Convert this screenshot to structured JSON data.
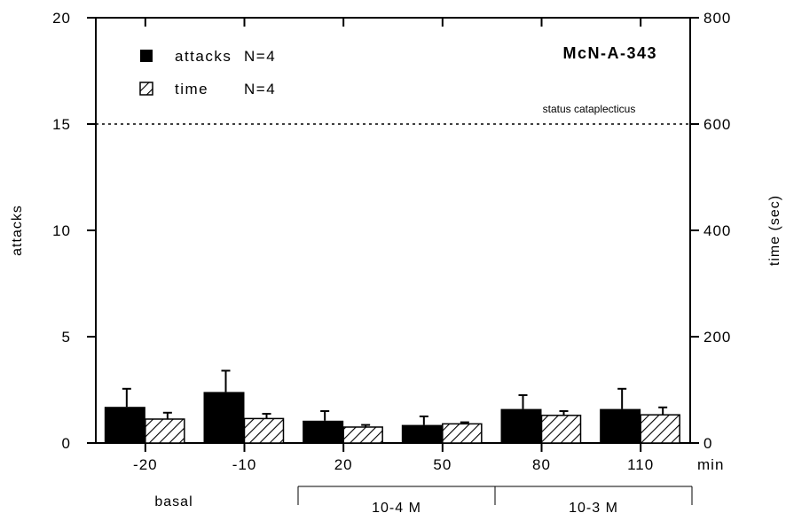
{
  "chart_data": {
    "type": "bar",
    "title": "McN-A-343",
    "categories": [
      "-20",
      "-10",
      "20",
      "50",
      "80",
      "110"
    ],
    "x_unit": "min",
    "series": [
      {
        "name": "attacks N=4",
        "axis": "left",
        "fill": "solid",
        "values": [
          1.7,
          2.4,
          1.05,
          0.85,
          1.6,
          1.6
        ],
        "errors": [
          0.85,
          1.0,
          0.45,
          0.4,
          0.65,
          0.95
        ]
      },
      {
        "name": "time N=4",
        "axis": "right",
        "fill": "hatched",
        "values": [
          45,
          46,
          30,
          36,
          52,
          53
        ],
        "errors": [
          12,
          9,
          4,
          3,
          8,
          14
        ]
      }
    ],
    "legend_labels": {
      "attacks_name": "attacks",
      "attacks_n": "N=4",
      "time_name": "time",
      "time_n": "N=4"
    },
    "ylabel_left": "attacks",
    "ylabel_right": "time (sec)",
    "ylim_left": [
      0,
      20
    ],
    "ylim_right": [
      0,
      800
    ],
    "yticks_left": [
      "0",
      "5",
      "10",
      "15",
      "20"
    ],
    "yticks_right": [
      "0",
      "200",
      "400",
      "600",
      "800"
    ],
    "reference_line": {
      "value": 15,
      "label": "status cataplecticus",
      "style": "dotted"
    },
    "groups": [
      {
        "label": "basal",
        "categories": [
          "-20",
          "-10"
        ]
      },
      {
        "label": "10-4 M",
        "categories": [
          "20",
          "50"
        ]
      },
      {
        "label": "10-3 M",
        "categories": [
          "80",
          "110"
        ]
      }
    ],
    "legend_position": "top-left",
    "grid": false,
    "colors": {
      "bars": "#000000",
      "background": "#ffffff"
    }
  }
}
